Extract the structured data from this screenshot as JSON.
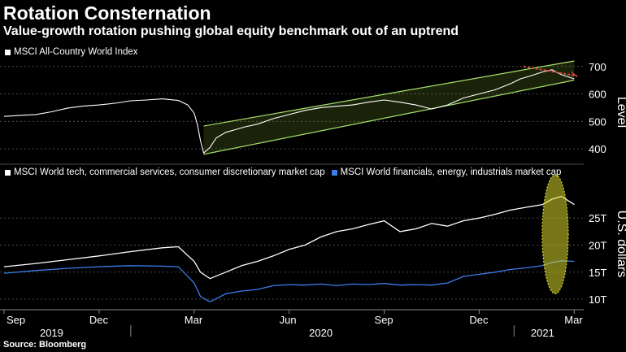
{
  "title": "Rotation Consternation",
  "subtitle": "Value-growth rotation pushing global equity benchmark out of an uptrend",
  "source": "Source: Bloomberg",
  "colors": {
    "white": "#ffffff",
    "blue": "#3b7dea",
    "channel": "#a6e06b",
    "ellipse": "#d7d72e",
    "arrow": "#e0463a",
    "grid": "#4a4a4a"
  },
  "chart_data": [
    {
      "type": "line",
      "ylabel": "Level",
      "ylim": [
        350,
        720
      ],
      "yticks": [
        "400",
        "500",
        "600",
        "700"
      ],
      "x_unit": "months since 2019-09-01",
      "series": [
        {
          "name": "MSCI All-Country World Index",
          "x": [
            0,
            0.5,
            1,
            1.5,
            2,
            2.5,
            3,
            3.5,
            4,
            4.5,
            5,
            5.5,
            5.8,
            6,
            6.1,
            6.2,
            6.3,
            6.5,
            6.7,
            7,
            7.3,
            7.6,
            8,
            8.5,
            9,
            9.5,
            10,
            10.5,
            11,
            11.5,
            12,
            12.5,
            13,
            13.5,
            14,
            14.5,
            15,
            15.5,
            16,
            16.3,
            16.6,
            17,
            17.3,
            17.6,
            18
          ],
          "values": [
            518,
            522,
            525,
            535,
            548,
            556,
            560,
            566,
            575,
            578,
            582,
            576,
            560,
            530,
            490,
            430,
            385,
            405,
            440,
            460,
            470,
            480,
            490,
            510,
            525,
            540,
            550,
            555,
            560,
            570,
            578,
            570,
            560,
            545,
            560,
            585,
            600,
            615,
            638,
            655,
            665,
            680,
            688,
            670,
            655
          ]
        }
      ],
      "annotations": [
        "uptrend channel",
        "downward arrow"
      ]
    },
    {
      "type": "line",
      "ylabel": "U.S. dollars",
      "ylim": [
        8.5,
        31.5
      ],
      "yticks": [
        "10T",
        "15T",
        "20T",
        "25T"
      ],
      "x_unit": "months since 2019-09-01",
      "series": [
        {
          "name": "MSCI World tech, commercial services, consumer discretionary market cap",
          "x": [
            0,
            1,
            2,
            3,
            4,
            5,
            5.5,
            6,
            6.2,
            6.5,
            7,
            7.5,
            8,
            8.5,
            9,
            9.5,
            10,
            10.5,
            11,
            11.5,
            12,
            12.5,
            13,
            13.5,
            14,
            14.5,
            15,
            15.5,
            16,
            16.5,
            17,
            17.3,
            17.6,
            18
          ],
          "values": [
            16,
            16.6,
            17.3,
            18,
            18.8,
            19.5,
            19.7,
            17,
            15,
            13.8,
            15,
            16.2,
            17,
            18,
            19.2,
            20,
            21.5,
            22.5,
            23,
            23.8,
            24.5,
            22.5,
            23,
            24,
            23.5,
            24.5,
            25,
            25.7,
            26.5,
            27,
            27.5,
            28.5,
            29,
            27.5
          ]
        },
        {
          "name": "MSCI World financials, energy, industrials market cap",
          "x": [
            0,
            1,
            2,
            3,
            4,
            5,
            5.5,
            6,
            6.2,
            6.5,
            7,
            7.5,
            8,
            8.5,
            9,
            9.5,
            10,
            10.5,
            11,
            11.5,
            12,
            12.5,
            13,
            13.5,
            14,
            14.5,
            15,
            15.5,
            16,
            16.5,
            17,
            17.3,
            17.6,
            18
          ],
          "values": [
            14.8,
            15.3,
            15.7,
            16,
            16.2,
            16.1,
            16,
            13,
            10.5,
            9.5,
            11,
            11.5,
            11.8,
            12.5,
            12.7,
            12.6,
            12.8,
            12.5,
            12.8,
            12.7,
            12.9,
            12.6,
            12.7,
            12.6,
            13,
            14.2,
            14.6,
            15,
            15.5,
            15.8,
            16.2,
            16.8,
            17.1,
            17
          ]
        }
      ]
    }
  ],
  "x_axis": {
    "month_ticks": [
      {
        "label": "Sep",
        "month": 0
      },
      {
        "label": "Dec",
        "month": 3
      },
      {
        "label": "Mar",
        "month": 6
      },
      {
        "label": "Jun",
        "month": 9
      },
      {
        "label": "Sep",
        "month": 12
      },
      {
        "label": "Dec",
        "month": 15
      },
      {
        "label": "Mar",
        "month": 18
      }
    ],
    "years": [
      {
        "label": "2019",
        "month": 1.5
      },
      {
        "label": "2020",
        "month": 10
      },
      {
        "label": "2021",
        "month": 17
      }
    ]
  }
}
